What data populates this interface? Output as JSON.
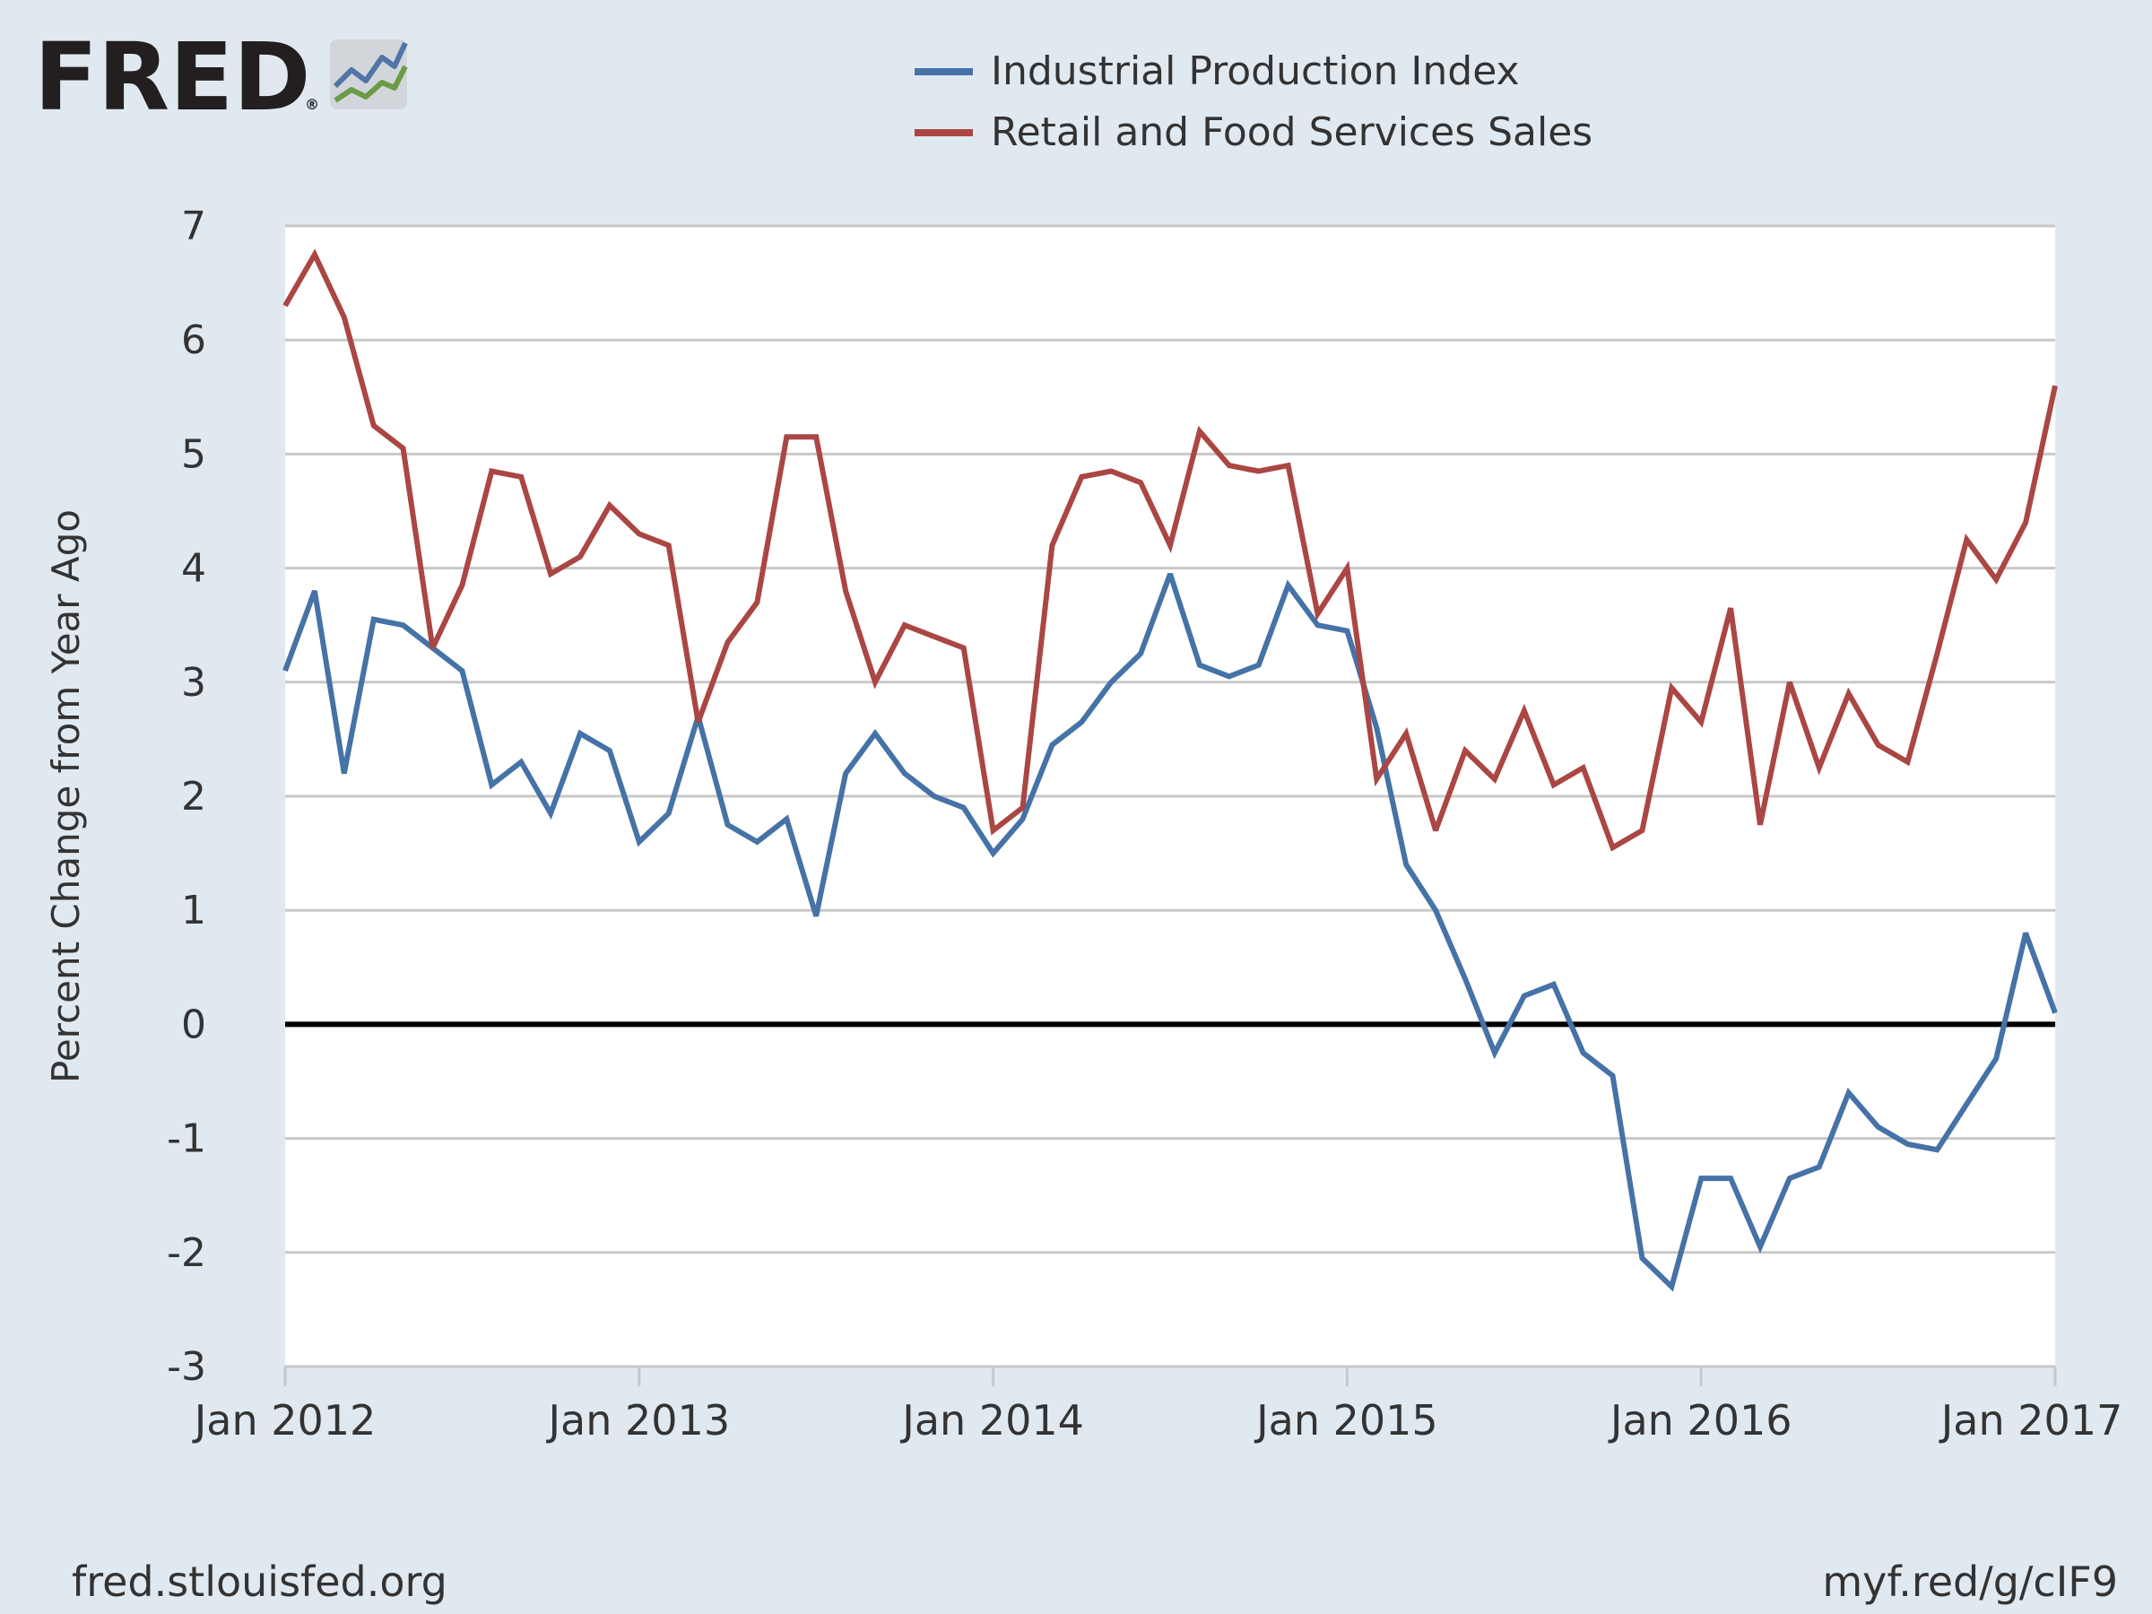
{
  "header": {
    "logo_text": "FRED",
    "logo_mark": "®"
  },
  "footer": {
    "source_url": "fred.stlouisfed.org",
    "short_link": "myf.red/g/cIF9"
  },
  "colors": {
    "background": "#e1e9f0",
    "plot_background": "#ffffff",
    "gridline": "#c8c8c8",
    "zero_line": "#000000",
    "text": "#333333",
    "industrial_production": "#4572a7",
    "retail_sales": "#aa4643"
  },
  "chart_data": {
    "type": "line",
    "ylabel": "Percent Change from Year Ago",
    "xlabel": "",
    "ylim": [
      -3,
      7
    ],
    "yticks": [
      -3,
      -2,
      -1,
      0,
      1,
      2,
      3,
      4,
      5,
      6,
      7
    ],
    "ytick_labels": [
      "-3",
      "-2",
      "-1",
      "0",
      "1",
      "2",
      "3",
      "4",
      "5",
      "6",
      "7"
    ],
    "xlim": [
      "2012-01",
      "2017-01"
    ],
    "xticks": [
      "2012-01",
      "2013-01",
      "2014-01",
      "2015-01",
      "2016-01",
      "2017-01"
    ],
    "xtick_labels": [
      "Jan 2012",
      "Jan 2013",
      "Jan 2014",
      "Jan 2015",
      "Jan 2016",
      "Jan 2017"
    ],
    "grid": true,
    "zero_line": true,
    "legend_position": "top-center",
    "x": [
      "2012-01",
      "2012-02",
      "2012-03",
      "2012-04",
      "2012-05",
      "2012-06",
      "2012-07",
      "2012-08",
      "2012-09",
      "2012-10",
      "2012-11",
      "2012-12",
      "2013-01",
      "2013-02",
      "2013-03",
      "2013-04",
      "2013-05",
      "2013-06",
      "2013-07",
      "2013-08",
      "2013-09",
      "2013-10",
      "2013-11",
      "2013-12",
      "2014-01",
      "2014-02",
      "2014-03",
      "2014-04",
      "2014-05",
      "2014-06",
      "2014-07",
      "2014-08",
      "2014-09",
      "2014-10",
      "2014-11",
      "2014-12",
      "2015-01",
      "2015-02",
      "2015-03",
      "2015-04",
      "2015-05",
      "2015-06",
      "2015-07",
      "2015-08",
      "2015-09",
      "2015-10",
      "2015-11",
      "2015-12",
      "2016-01",
      "2016-02",
      "2016-03",
      "2016-04",
      "2016-05",
      "2016-06",
      "2016-07",
      "2016-08",
      "2016-09",
      "2016-10",
      "2016-11",
      "2016-12",
      "2017-01"
    ],
    "series": [
      {
        "name": "Industrial Production Index",
        "color": "#4572a7",
        "values": [
          3.1,
          3.8,
          2.2,
          3.55,
          3.5,
          3.3,
          3.1,
          2.1,
          2.3,
          1.85,
          2.55,
          2.4,
          1.6,
          1.85,
          2.7,
          1.75,
          1.6,
          1.8,
          0.95,
          2.2,
          2.55,
          2.2,
          2.0,
          1.9,
          1.5,
          1.8,
          2.45,
          2.65,
          3.0,
          3.25,
          3.95,
          3.15,
          3.05,
          3.15,
          3.85,
          3.5,
          3.45,
          2.6,
          1.4,
          1.0,
          0.4,
          -0.25,
          0.25,
          0.35,
          -0.25,
          -0.45,
          -2.05,
          -2.3,
          -1.35,
          -1.35,
          -1.95,
          -1.35,
          -1.25,
          -0.6,
          -0.9,
          -1.05,
          -1.1,
          -0.7,
          -0.3,
          0.8,
          0.1
        ]
      },
      {
        "name": "Retail and Food Services Sales",
        "color": "#aa4643",
        "values": [
          6.3,
          6.75,
          6.2,
          5.25,
          5.05,
          3.3,
          3.85,
          4.85,
          4.8,
          3.95,
          4.1,
          4.55,
          4.3,
          4.2,
          2.65,
          3.35,
          3.7,
          5.15,
          5.15,
          3.8,
          3.0,
          3.5,
          3.4,
          3.3,
          1.7,
          1.9,
          4.2,
          4.8,
          4.85,
          4.75,
          4.2,
          5.2,
          4.9,
          4.85,
          4.9,
          3.6,
          4.0,
          2.15,
          2.55,
          1.7,
          2.4,
          2.15,
          2.75,
          2.1,
          2.25,
          1.55,
          1.7,
          2.95,
          2.65,
          3.65,
          1.75,
          3.0,
          2.25,
          2.9,
          2.45,
          2.3,
          3.25,
          4.25,
          3.9,
          4.4,
          5.6
        ]
      }
    ]
  }
}
